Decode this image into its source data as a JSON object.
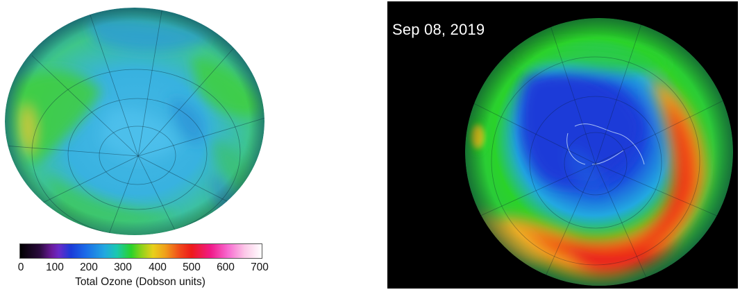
{
  "left_panel": {
    "colorbar": {
      "ticks": [
        "0",
        "100",
        "200",
        "300",
        "400",
        "500",
        "600",
        "700"
      ],
      "title": "Total Ozone (Dobson units)",
      "range": [
        0,
        700
      ]
    }
  },
  "right_panel": {
    "date": "Sep 08, 2019"
  },
  "colors": {
    "hole_blue": "#1a3ad8",
    "mid_cyan": "#22a8e0",
    "green": "#2ad22a",
    "high_red": "#ee1a1a",
    "background_right": "#000000"
  }
}
